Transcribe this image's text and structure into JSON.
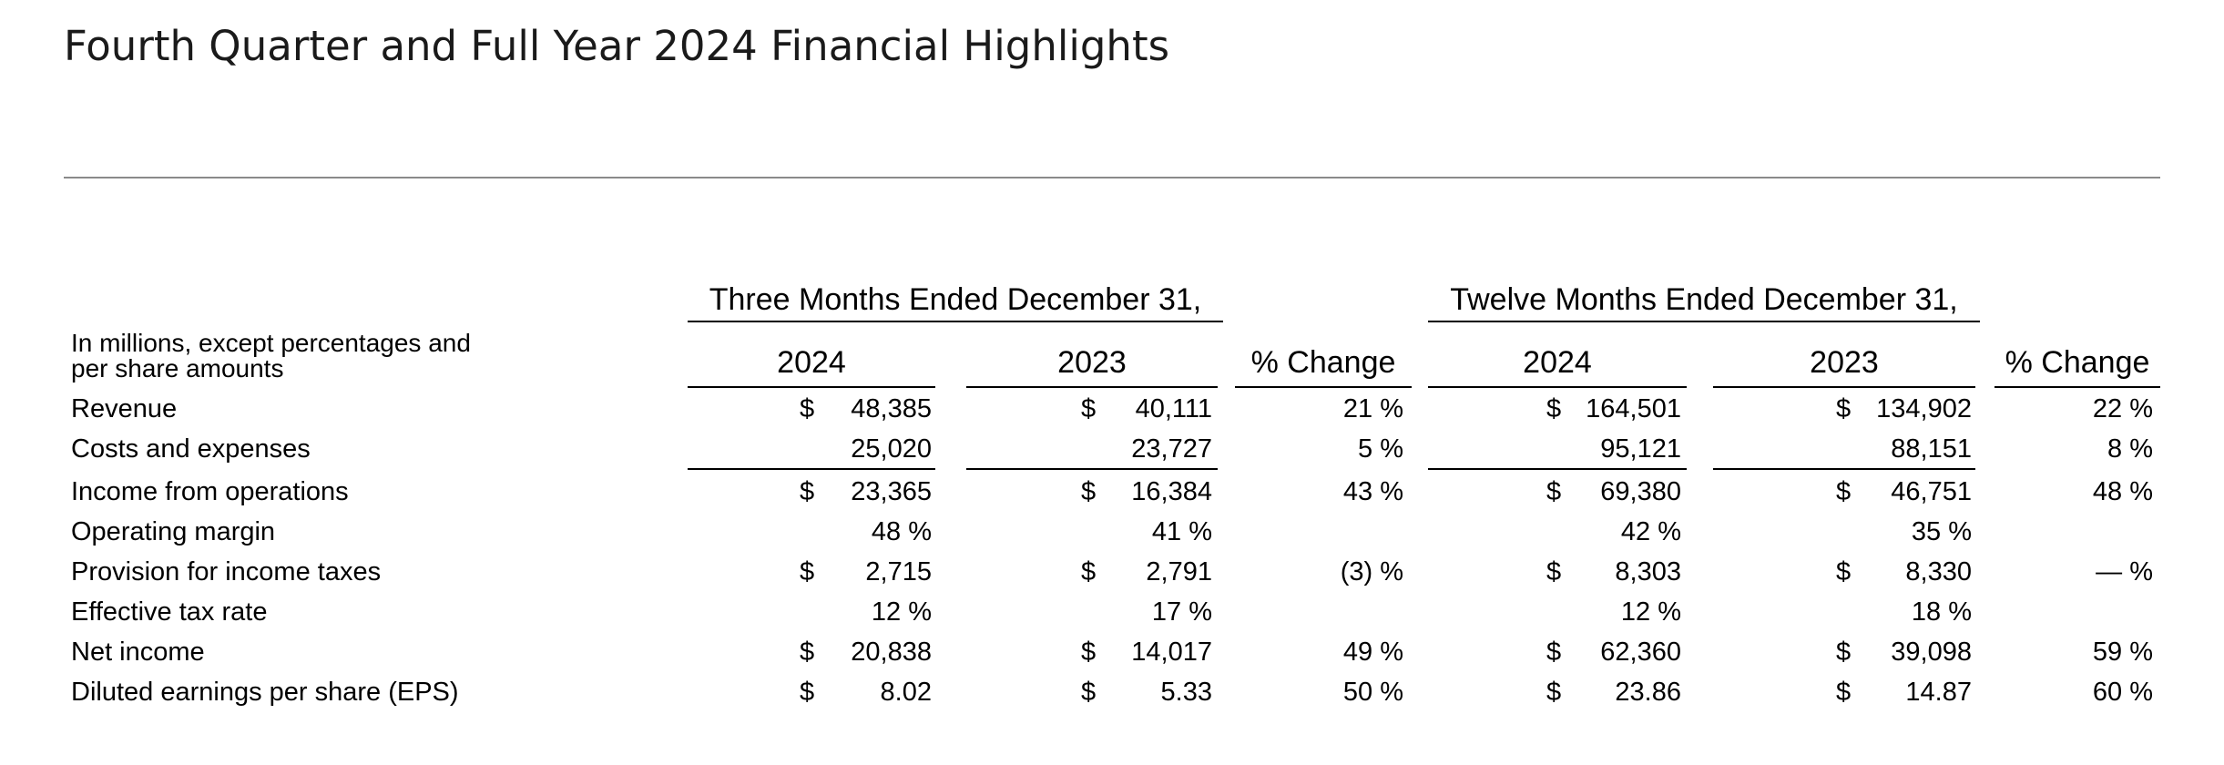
{
  "title": "Fourth Quarter and Full Year 2024 Financial Highlights",
  "table": {
    "group_headers": {
      "three_months": "Three Months Ended December 31,",
      "twelve_months": "Twelve Months Ended December 31,"
    },
    "stub_header": [
      "In millions, except percentages and",
      "per share amounts"
    ],
    "columns": [
      "2024",
      "2023",
      "% Change",
      "2024",
      "2023",
      "% Change"
    ],
    "rows": [
      {
        "label": "Revenue",
        "cells": [
          {
            "sym": "$",
            "val": "48,385"
          },
          {
            "sym": "$",
            "val": "40,111"
          },
          {
            "val": "21 %"
          },
          {
            "sym": "$",
            "val": "164,501"
          },
          {
            "sym": "$",
            "val": "134,902"
          },
          {
            "val": "22 %"
          }
        ]
      },
      {
        "label": "Costs and expenses",
        "cells": [
          {
            "val": "25,020"
          },
          {
            "val": "23,727"
          },
          {
            "val": "5 %"
          },
          {
            "val": "95,121"
          },
          {
            "val": "88,151"
          },
          {
            "val": "8 %"
          }
        ]
      },
      {
        "label": "Income from operations",
        "cells": [
          {
            "sym": "$",
            "val": "23,365"
          },
          {
            "sym": "$",
            "val": "16,384"
          },
          {
            "val": "43 %"
          },
          {
            "sym": "$",
            "val": "69,380"
          },
          {
            "sym": "$",
            "val": "46,751"
          },
          {
            "val": "48 %"
          }
        ]
      },
      {
        "label": "Operating margin",
        "cells": [
          {
            "val": "48 %"
          },
          {
            "val": "41 %"
          },
          {
            "val": ""
          },
          {
            "val": "42 %"
          },
          {
            "val": "35 %"
          },
          {
            "val": ""
          }
        ]
      },
      {
        "label": "Provision for income taxes",
        "cells": [
          {
            "sym": "$",
            "val": "2,715"
          },
          {
            "sym": "$",
            "val": "2,791"
          },
          {
            "val": "(3) %"
          },
          {
            "sym": "$",
            "val": "8,303"
          },
          {
            "sym": "$",
            "val": "8,330"
          },
          {
            "val": "— %"
          }
        ]
      },
      {
        "label": "Effective tax rate",
        "cells": [
          {
            "val": "12 %"
          },
          {
            "val": "17 %"
          },
          {
            "val": ""
          },
          {
            "val": "12 %"
          },
          {
            "val": "18 %"
          },
          {
            "val": ""
          }
        ]
      },
      {
        "label": "Net income",
        "cells": [
          {
            "sym": "$",
            "val": "20,838"
          },
          {
            "sym": "$",
            "val": "14,017"
          },
          {
            "val": "49 %"
          },
          {
            "sym": "$",
            "val": "62,360"
          },
          {
            "sym": "$",
            "val": "39,098"
          },
          {
            "val": "59 %"
          }
        ]
      },
      {
        "label": "Diluted earnings per share (EPS)",
        "cells": [
          {
            "sym": "$",
            "val": "8.02"
          },
          {
            "sym": "$",
            "val": "5.33"
          },
          {
            "val": "50 %"
          },
          {
            "sym": "$",
            "val": "23.86"
          },
          {
            "sym": "$",
            "val": "14.87"
          },
          {
            "val": "60 %"
          }
        ]
      }
    ]
  }
}
